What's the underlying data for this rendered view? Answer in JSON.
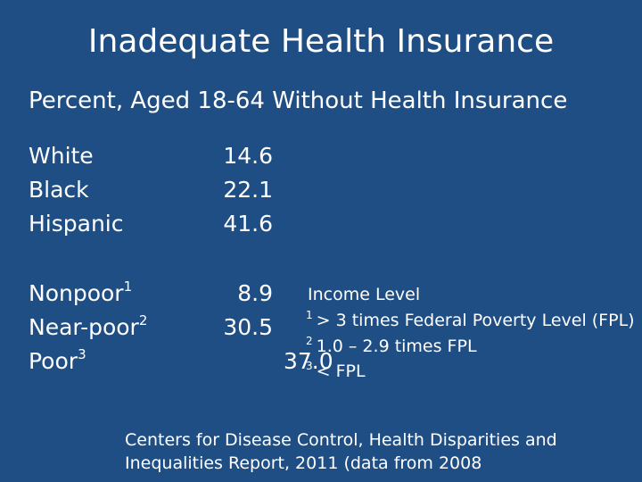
{
  "slide": {
    "title": "Inadequate Health Insurance",
    "subtitle": "Percent, Aged 18-64 Without Health Insurance"
  },
  "race_rows": [
    {
      "label": "White",
      "value": "14.6"
    },
    {
      "label": "Black",
      "value": "22.1"
    },
    {
      "label": "Hispanic",
      "value": "41.6"
    }
  ],
  "income_rows": [
    {
      "label": "Nonpoor",
      "marker": "1",
      "value": "8.9"
    },
    {
      "label": "Near-poor",
      "marker": "2",
      "value": "30.5"
    },
    {
      "label": "Poor",
      "marker": "3",
      "value": "37.0"
    }
  ],
  "income_legend": {
    "title": "Income Level",
    "notes": [
      {
        "marker": "1",
        "text": "> 3 times Federal Poverty Level (FPL)"
      },
      {
        "marker": "2",
        "text": "1.0 – 2.9 times FPL"
      },
      {
        "marker": "3",
        "text": "< FPL"
      }
    ]
  },
  "source": "Centers for Disease Control, Health Disparities and Inequalities Report, 2011 (data from 2008",
  "colors": {
    "background": "#1f4e84",
    "text": "#ffffff"
  }
}
